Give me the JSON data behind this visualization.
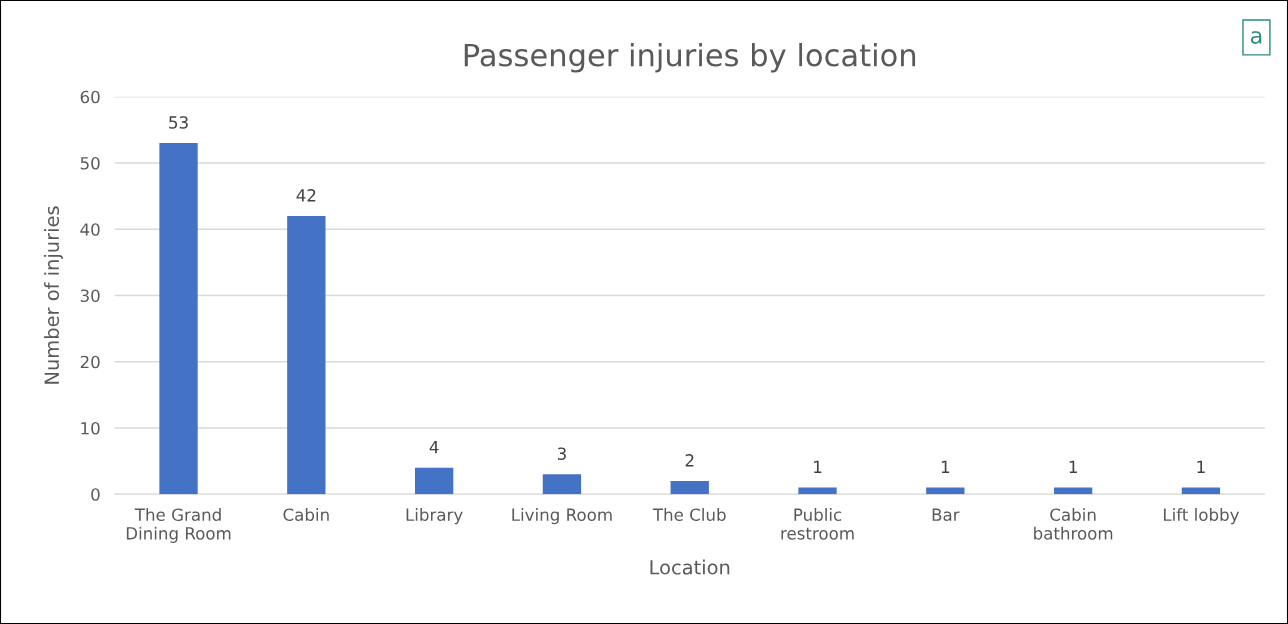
{
  "chart_data": {
    "type": "bar",
    "title": "Passenger injuries by location",
    "xlabel": "Location",
    "ylabel": "Number of injuries",
    "categories": [
      "The Grand\nDining Room",
      "Cabin",
      "Library",
      "Living Room",
      "The Club",
      "Public\nrestroom",
      "Bar",
      "Cabin\nbathroom",
      "Lift lobby"
    ],
    "values": [
      53,
      42,
      4,
      3,
      2,
      1,
      1,
      1,
      1
    ],
    "color": "#4472c4",
    "ylim": [
      0,
      60
    ],
    "yticks": [
      0,
      10,
      20,
      30,
      40,
      50,
      60
    ],
    "grid": "y",
    "data_labels": true,
    "annotations": [
      "a"
    ]
  }
}
